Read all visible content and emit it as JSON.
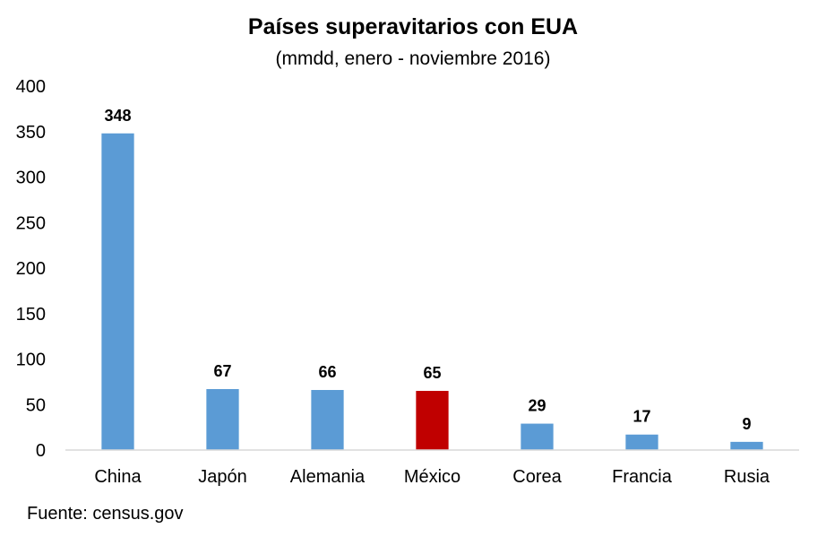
{
  "chart_data": {
    "type": "bar",
    "title": "Países superavitarios con EUA",
    "subtitle": "(mmdd, enero - noviembre 2016)",
    "categories": [
      "China",
      "Japón",
      "Alemania",
      "México",
      "Corea",
      "Francia",
      "Rusia"
    ],
    "values": [
      348,
      67,
      66,
      65,
      29,
      17,
      9
    ],
    "data_labels": [
      "348",
      "67",
      "66",
      "65",
      "29",
      "17",
      "9"
    ],
    "ylim": [
      0,
      400
    ],
    "yticks": [
      0,
      50,
      100,
      150,
      200,
      250,
      300,
      350,
      400
    ],
    "grid": false,
    "legend": "none",
    "colors": {
      "default": "#5B9BD5",
      "highlight": "#C00000",
      "highlight_category": "México",
      "axis": "#D9D9D9"
    }
  },
  "source": "Fuente: census.gov"
}
